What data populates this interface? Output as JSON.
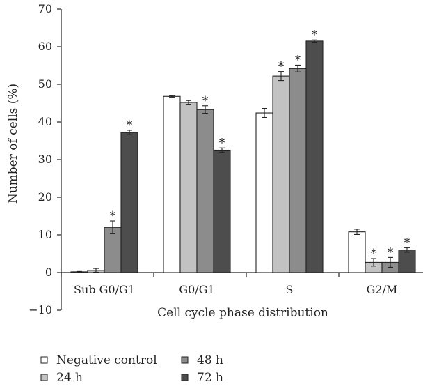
{
  "chart_data": {
    "type": "bar",
    "title": "",
    "xlabel": "Cell cycle phase distribution",
    "ylabel": "Number of cells (%)",
    "ylim": [
      -10,
      70
    ],
    "yticks": [
      -10,
      0,
      10,
      20,
      30,
      40,
      50,
      60,
      70
    ],
    "ytick_labels": [
      "−10",
      "0",
      "10",
      "20",
      "30",
      "40",
      "50",
      "60",
      "70"
    ],
    "grid": false,
    "legend_position": "bottom",
    "categories": [
      "Sub G0/G1",
      "G0/G1",
      "S",
      "G2/M"
    ],
    "significance_marker": "*",
    "series": [
      {
        "name": "Negative control",
        "color": "#ffffff",
        "values": [
          0.2,
          46.8,
          42.4,
          10.8
        ],
        "errors": [
          0.1,
          0.2,
          1.2,
          0.7
        ],
        "significant": [
          false,
          false,
          false,
          false
        ]
      },
      {
        "name": "24 h",
        "color": "#c2c2c2",
        "values": [
          0.6,
          45.2,
          52.2,
          2.7
        ],
        "errors": [
          0.5,
          0.5,
          1.2,
          1.0
        ],
        "significant": [
          false,
          false,
          true,
          true
        ]
      },
      {
        "name": "48 h",
        "color": "#8c8c8c",
        "values": [
          12.0,
          43.3,
          54.2,
          2.7
        ],
        "errors": [
          1.7,
          1.0,
          0.9,
          1.3
        ],
        "significant": [
          true,
          true,
          true,
          true
        ]
      },
      {
        "name": "72 h",
        "color": "#4d4d4d",
        "values": [
          37.2,
          32.5,
          61.5,
          6.0
        ],
        "errors": [
          0.6,
          0.6,
          0.3,
          0.6
        ],
        "significant": [
          true,
          true,
          true,
          true
        ]
      }
    ]
  }
}
